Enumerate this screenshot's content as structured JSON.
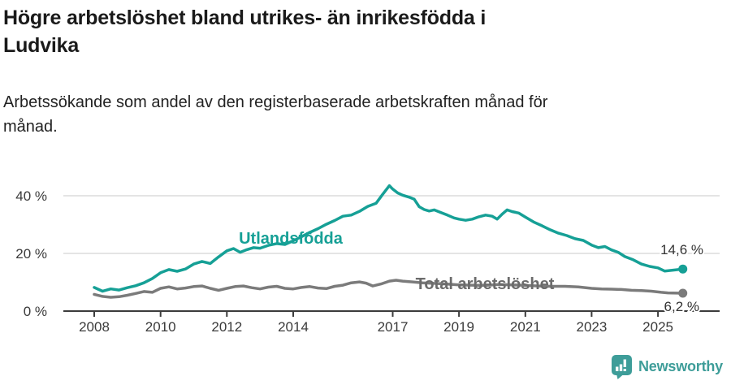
{
  "header": {
    "title_lines": [
      "Högre arbetslöshet bland utrikes- än inrikesfödda i",
      "Ludvika"
    ],
    "subtitle_lines": [
      "Arbetssökande som andel av den registerbaserade arbetskraften månad för",
      "månad."
    ]
  },
  "footer": {
    "brand": "Newsworthy",
    "logo_icon": "speech-bubble-bar-chart"
  },
  "colors": {
    "accent_teal": "#16a096",
    "line_gray": "#7b7b7b",
    "series_label_gray": "#6b6b6b",
    "axis": "#3c3c3c",
    "gridline": "#dcdcdc",
    "annotation_text": "#333333",
    "logo_teal": "#3e9d99"
  },
  "chart_data": {
    "type": "line",
    "title": "Högre arbetslöshet bland utrikes- än inrikesfödda i Ludvika",
    "subtitle": "Arbetssökande som andel av den registerbaserade arbetskraften månad för månad.",
    "unit": "%",
    "grid": "horizontal-only",
    "legend_position": "inline-labels-on-lines",
    "xlim": [
      2007.9,
      2026.1
    ],
    "ylim": [
      0,
      45
    ],
    "x_ticks": [
      {
        "label": "2008",
        "year": 2008
      },
      {
        "label": "2010",
        "year": 2010
      },
      {
        "label": "2012",
        "year": 2012
      },
      {
        "label": "2014",
        "year": 2014
      },
      {
        "label": "2017",
        "year": 2017
      },
      {
        "label": "2019",
        "year": 2019
      },
      {
        "label": "2021",
        "year": 2021
      },
      {
        "label": "2023",
        "year": 2023
      },
      {
        "label": "2025",
        "year": 2025
      }
    ],
    "y_ticks": [
      {
        "label": "0 %",
        "value": 0
      },
      {
        "label": "20 %",
        "value": 20
      },
      {
        "label": "40 %",
        "value": 40
      }
    ],
    "series": [
      {
        "name": "Utlandsfödda",
        "color": "#16a096",
        "end_label": "14,6 %",
        "end_value": 14.6,
        "points": [
          [
            2008.0,
            8.2
          ],
          [
            2008.25,
            6.9
          ],
          [
            2008.5,
            7.7
          ],
          [
            2008.75,
            7.3
          ],
          [
            2009.0,
            8.1
          ],
          [
            2009.25,
            8.8
          ],
          [
            2009.5,
            9.8
          ],
          [
            2009.75,
            11.3
          ],
          [
            2010.0,
            13.3
          ],
          [
            2010.25,
            14.4
          ],
          [
            2010.5,
            13.8
          ],
          [
            2010.75,
            14.6
          ],
          [
            2011.0,
            16.3
          ],
          [
            2011.25,
            17.2
          ],
          [
            2011.5,
            16.5
          ],
          [
            2011.75,
            18.8
          ],
          [
            2012.0,
            20.9
          ],
          [
            2012.2,
            21.7
          ],
          [
            2012.4,
            20.4
          ],
          [
            2012.6,
            21.3
          ],
          [
            2012.8,
            22.0
          ],
          [
            2013.0,
            21.8
          ],
          [
            2013.25,
            22.8
          ],
          [
            2013.5,
            23.4
          ],
          [
            2013.75,
            23.1
          ],
          [
            2014.0,
            24.4
          ],
          [
            2014.25,
            25.8
          ],
          [
            2014.5,
            27.3
          ],
          [
            2014.75,
            28.6
          ],
          [
            2015.0,
            30.1
          ],
          [
            2015.25,
            31.4
          ],
          [
            2015.5,
            32.9
          ],
          [
            2015.75,
            33.3
          ],
          [
            2016.0,
            34.6
          ],
          [
            2016.25,
            36.3
          ],
          [
            2016.5,
            37.4
          ],
          [
            2016.7,
            40.5
          ],
          [
            2016.9,
            43.5
          ],
          [
            2017.0,
            42.3
          ],
          [
            2017.15,
            41.0
          ],
          [
            2017.3,
            40.2
          ],
          [
            2017.5,
            39.5
          ],
          [
            2017.65,
            38.8
          ],
          [
            2017.8,
            36.2
          ],
          [
            2017.95,
            35.2
          ],
          [
            2018.1,
            34.7
          ],
          [
            2018.25,
            35.1
          ],
          [
            2018.45,
            34.2
          ],
          [
            2018.65,
            33.3
          ],
          [
            2018.85,
            32.3
          ],
          [
            2019.0,
            31.9
          ],
          [
            2019.2,
            31.5
          ],
          [
            2019.4,
            31.9
          ],
          [
            2019.6,
            32.7
          ],
          [
            2019.8,
            33.3
          ],
          [
            2020.0,
            32.9
          ],
          [
            2020.15,
            31.9
          ],
          [
            2020.3,
            33.6
          ],
          [
            2020.45,
            35.1
          ],
          [
            2020.6,
            34.5
          ],
          [
            2020.8,
            34.0
          ],
          [
            2021.0,
            32.6
          ],
          [
            2021.25,
            30.9
          ],
          [
            2021.5,
            29.6
          ],
          [
            2021.75,
            28.2
          ],
          [
            2022.0,
            27.0
          ],
          [
            2022.25,
            26.2
          ],
          [
            2022.5,
            25.1
          ],
          [
            2022.75,
            24.5
          ],
          [
            2023.0,
            22.9
          ],
          [
            2023.2,
            22.0
          ],
          [
            2023.4,
            22.4
          ],
          [
            2023.6,
            21.2
          ],
          [
            2023.8,
            20.4
          ],
          [
            2024.0,
            18.9
          ],
          [
            2024.25,
            17.8
          ],
          [
            2024.5,
            16.3
          ],
          [
            2024.75,
            15.5
          ],
          [
            2025.0,
            15.0
          ],
          [
            2025.2,
            13.9
          ],
          [
            2025.45,
            14.2
          ],
          [
            2025.75,
            14.6
          ]
        ]
      },
      {
        "name": "Total arbetslöshet",
        "color": "#7b7b7b",
        "end_label": "6,2 %",
        "end_value": 6.2,
        "points": [
          [
            2008.0,
            5.8
          ],
          [
            2008.25,
            5.1
          ],
          [
            2008.5,
            4.8
          ],
          [
            2008.75,
            5.0
          ],
          [
            2009.0,
            5.5
          ],
          [
            2009.25,
            6.1
          ],
          [
            2009.5,
            6.8
          ],
          [
            2009.75,
            6.5
          ],
          [
            2010.0,
            7.9
          ],
          [
            2010.25,
            8.4
          ],
          [
            2010.5,
            7.7
          ],
          [
            2010.75,
            8.0
          ],
          [
            2011.0,
            8.5
          ],
          [
            2011.25,
            8.7
          ],
          [
            2011.5,
            7.9
          ],
          [
            2011.75,
            7.2
          ],
          [
            2012.0,
            7.9
          ],
          [
            2012.25,
            8.5
          ],
          [
            2012.5,
            8.7
          ],
          [
            2012.75,
            8.1
          ],
          [
            2013.0,
            7.7
          ],
          [
            2013.25,
            8.3
          ],
          [
            2013.5,
            8.6
          ],
          [
            2013.75,
            7.9
          ],
          [
            2014.0,
            7.7
          ],
          [
            2014.25,
            8.2
          ],
          [
            2014.5,
            8.5
          ],
          [
            2014.75,
            8.0
          ],
          [
            2015.0,
            7.8
          ],
          [
            2015.25,
            8.6
          ],
          [
            2015.5,
            9.0
          ],
          [
            2015.75,
            9.8
          ],
          [
            2016.0,
            10.1
          ],
          [
            2016.2,
            9.7
          ],
          [
            2016.4,
            8.7
          ],
          [
            2016.65,
            9.4
          ],
          [
            2016.9,
            10.4
          ],
          [
            2017.1,
            10.7
          ],
          [
            2017.3,
            10.4
          ],
          [
            2017.6,
            10.1
          ],
          [
            2017.9,
            9.8
          ],
          [
            2018.25,
            9.6
          ],
          [
            2018.6,
            9.4
          ],
          [
            2019.0,
            9.1
          ],
          [
            2019.4,
            9.0
          ],
          [
            2019.8,
            8.9
          ],
          [
            2020.2,
            9.2
          ],
          [
            2020.6,
            9.1
          ],
          [
            2021.0,
            8.9
          ],
          [
            2021.4,
            8.7
          ],
          [
            2021.8,
            8.6
          ],
          [
            2022.2,
            8.6
          ],
          [
            2022.6,
            8.4
          ],
          [
            2023.0,
            7.9
          ],
          [
            2023.3,
            7.7
          ],
          [
            2023.6,
            7.6
          ],
          [
            2023.9,
            7.5
          ],
          [
            2024.2,
            7.2
          ],
          [
            2024.5,
            7.1
          ],
          [
            2024.8,
            6.9
          ],
          [
            2025.1,
            6.5
          ],
          [
            2025.3,
            6.3
          ],
          [
            2025.75,
            6.2
          ]
        ]
      }
    ]
  }
}
